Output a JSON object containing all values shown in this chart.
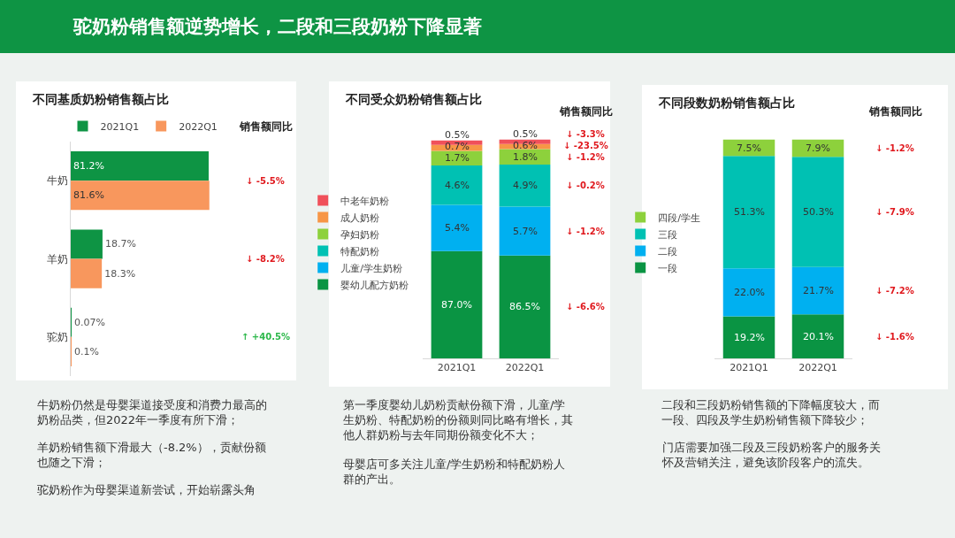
{
  "chart_data": [
    {
      "type": "bar",
      "orientation": "horizontal",
      "title": "驼奶粉销售额逆势增长，二段和三段奶粉下降显著",
      "subtitle": "不同基质奶粉销售额占比",
      "categories": [
        "牛奶",
        "羊奶",
        "驼奶"
      ],
      "series": [
        {
          "name": "2021Q1",
          "color": "#0e9444",
          "values": [
            81.2,
            18.7,
            0.07
          ],
          "value_labels": [
            "81.2%",
            "18.7%",
            "0.07%"
          ]
        },
        {
          "name": "2022Q1",
          "color": "#f8975d",
          "values": [
            81.6,
            18.3,
            0.1
          ],
          "value_labels": [
            "81.6%",
            "18.3%",
            "0.1%"
          ]
        }
      ],
      "legend": "top",
      "annotations": [
        "销售额同比",
        "↓ -5.5%",
        "↓ -8.2%",
        "↑ +40.5%",
        "牛奶粉仍然是母婴渠道接受度和消费力最高的奶粉品类，但2022年一季度有所下滑；",
        "羊奶粉销售额下滑最大（-8.2%），贡献份额也随之下滑；",
        "驼奶粉作为母婴渠道新尝试，开始崭露头角"
      ]
    },
    {
      "type": "bar",
      "stacked": true,
      "title": "不同受众奶粉销售额占比",
      "categories": [
        "2021Q1",
        "2022Q1"
      ],
      "series": [
        {
          "name": "婴幼儿配方奶粉",
          "color": "#0a9443",
          "values": [
            87.0,
            86.5
          ],
          "value_labels": [
            "87.0%",
            "86.5%"
          ]
        },
        {
          "name": "儿童/学生奶粉",
          "color": "#00b0f0",
          "values": [
            5.4,
            5.7
          ],
          "value_labels": [
            "5.4%",
            "5.7%"
          ]
        },
        {
          "name": "特配奶粉",
          "color": "#00c1b3",
          "values": [
            4.6,
            4.9
          ],
          "value_labels": [
            "4.6%",
            "4.9%"
          ]
        },
        {
          "name": "孕妇奶粉",
          "color": "#8dd13c",
          "values": [
            1.7,
            1.8
          ],
          "value_labels": [
            "1.7%",
            "1.8%"
          ]
        },
        {
          "name": "成人奶粉",
          "color": "#f79646",
          "values": [
            0.7,
            0.6
          ],
          "value_labels": [
            "0.7%",
            "0.6%"
          ]
        },
        {
          "name": "中老年奶粉",
          "color": "#f0505a",
          "values": [
            0.5,
            0.5
          ],
          "value_labels": [
            "0.5%",
            "0.5%"
          ]
        }
      ],
      "legend": "left",
      "annotations": [
        "销售额同比",
        "↓ -6.6%",
        "↓ -1.2%",
        "↓ -0.2%",
        "↓ -1.2%",
        "↓ -23.5%",
        "↓ -3.3%",
        "第一季度婴幼儿奶粉贡献份额下滑，儿童/学生奶粉、特配奶粉的份额则同比略有增长，其他人群奶粉与去年同期份额变化不大；",
        "母婴店可多关注儿童/学生奶粉和特配奶粉人群的产出。"
      ]
    },
    {
      "type": "bar",
      "stacked": true,
      "title": "不同段数奶粉销售额占比",
      "categories": [
        "2021Q1",
        "2022Q1"
      ],
      "series": [
        {
          "name": "一段",
          "color": "#0a9443",
          "values": [
            19.2,
            20.1
          ],
          "value_labels": [
            "19.2%",
            "20.1%"
          ]
        },
        {
          "name": "二段",
          "color": "#00b0f0",
          "values": [
            22.0,
            21.7
          ],
          "value_labels": [
            "22.0%",
            "21.7%"
          ]
        },
        {
          "name": "三段",
          "color": "#00c1b3",
          "values": [
            51.3,
            50.3
          ],
          "value_labels": [
            "51.3%",
            "50.3%"
          ]
        },
        {
          "name": "四段/学生",
          "color": "#8dd13c",
          "values": [
            7.5,
            7.9
          ],
          "value_labels": [
            "7.5%",
            "7.9%"
          ]
        }
      ],
      "legend": "left",
      "annotations": [
        "销售额同比",
        "↓ -1.6%",
        "↓ -7.2%",
        "↓ -7.9%",
        "↓ -1.2%",
        "二段和三段奶粉销售额的下降幅度较大，而一段、四段及学生奶粉销售额下降较少；",
        "门店需要加强二段及三段奶粉客户的服务关怀及营销关注，避免该阶段客户的流失。"
      ]
    }
  ]
}
